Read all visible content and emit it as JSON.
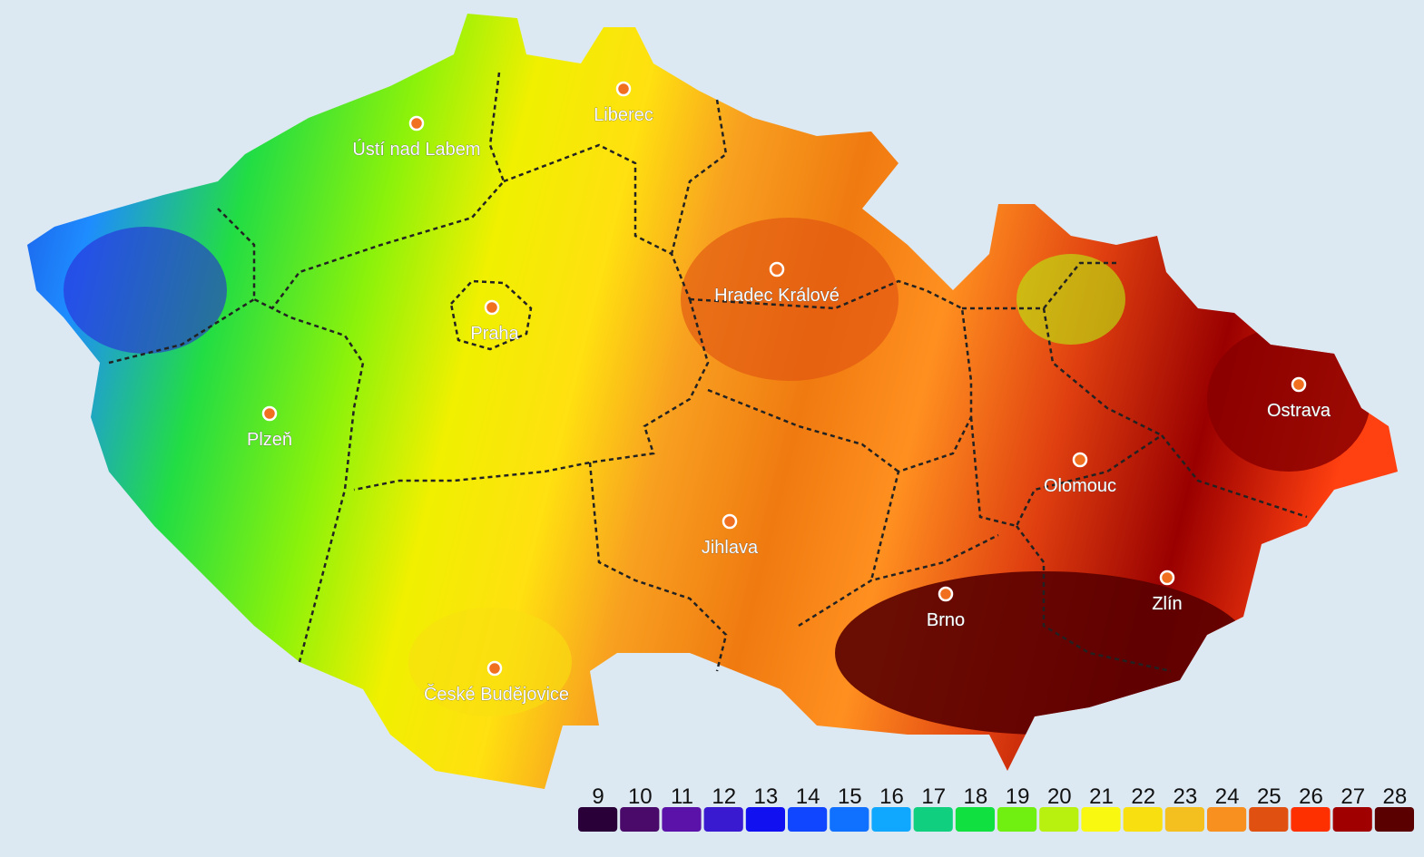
{
  "cities": [
    {
      "name": "Ústí nad Labem"
    },
    {
      "name": "Liberec"
    },
    {
      "name": "Hradec Králové"
    },
    {
      "name": "Praha"
    },
    {
      "name": "Plzeň"
    },
    {
      "name": "Ostrava"
    },
    {
      "name": "Olomouc"
    },
    {
      "name": "Jihlava"
    },
    {
      "name": "Brno"
    },
    {
      "name": "Zlín"
    },
    {
      "name": "České Budějovice"
    }
  ],
  "legend": [
    {
      "value": 9,
      "color": "#2a0038"
    },
    {
      "value": 10,
      "color": "#4a0a6a"
    },
    {
      "value": 11,
      "color": "#5a12a8"
    },
    {
      "value": 12,
      "color": "#3a1ad0"
    },
    {
      "value": 13,
      "color": "#1010f0"
    },
    {
      "value": 14,
      "color": "#1046ff"
    },
    {
      "value": 15,
      "color": "#1070ff"
    },
    {
      "value": 16,
      "color": "#10a8ff"
    },
    {
      "value": 17,
      "color": "#10d080"
    },
    {
      "value": 18,
      "color": "#10e040"
    },
    {
      "value": 19,
      "color": "#70f010"
    },
    {
      "value": 20,
      "color": "#b8f010"
    },
    {
      "value": 21,
      "color": "#f8f810"
    },
    {
      "value": 22,
      "color": "#f8e010"
    },
    {
      "value": 23,
      "color": "#f4c020"
    },
    {
      "value": 24,
      "color": "#f89020"
    },
    {
      "value": 25,
      "color": "#e05010"
    },
    {
      "value": 26,
      "color": "#ff3000"
    },
    {
      "value": 27,
      "color": "#a00000"
    },
    {
      "value": 28,
      "color": "#5a0000"
    }
  ]
}
